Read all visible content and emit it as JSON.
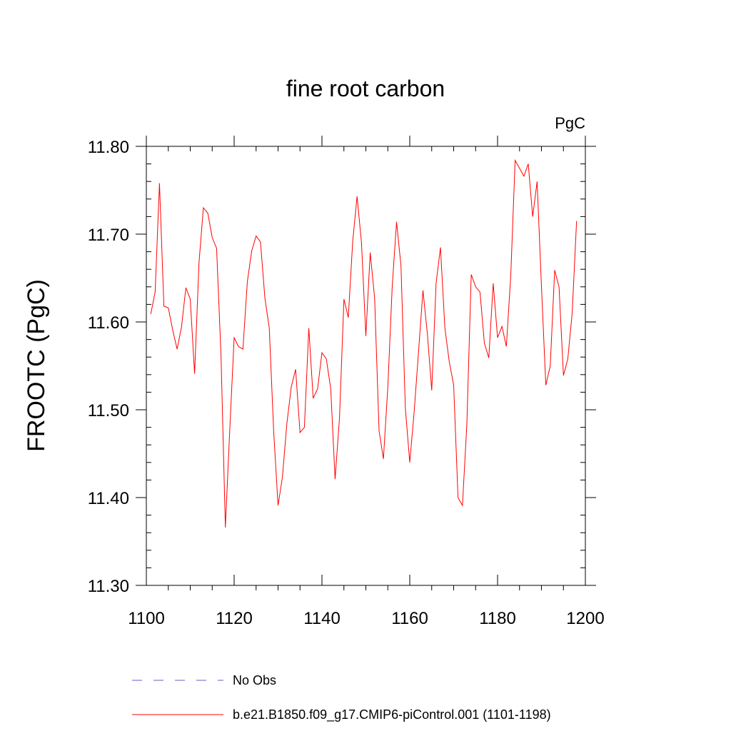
{
  "chart_data": {
    "type": "line",
    "title": "fine root carbon",
    "units_label": "PgC",
    "ylabel": "FROOTC  (PgC)",
    "xlabel": "",
    "xlim": [
      1100,
      1200
    ],
    "ylim": [
      11.3,
      11.8
    ],
    "x_ticks": [
      1100,
      1120,
      1140,
      1160,
      1180,
      1200
    ],
    "x_tick_labels": [
      "1100",
      "1120",
      "1140",
      "1160",
      "1180",
      "1200"
    ],
    "y_ticks": [
      11.3,
      11.4,
      11.5,
      11.6,
      11.7,
      11.8
    ],
    "y_tick_labels": [
      "11.30",
      "11.40",
      "11.50",
      "11.60",
      "11.70",
      "11.80"
    ],
    "grid": false,
    "legend_position": "bottom",
    "series": [
      {
        "name": "No Obs",
        "color": "#6a5acd",
        "style": "dashed",
        "x": [],
        "y": []
      },
      {
        "name": "b.e21.B1850.f09_g17.CMIP6-piControl.001 (1101-1198)",
        "color": "#ff0000",
        "style": "solid",
        "x": [
          1101,
          1102,
          1103,
          1104,
          1105,
          1106,
          1107,
          1108,
          1109,
          1110,
          1111,
          1112,
          1113,
          1114,
          1115,
          1116,
          1117,
          1118,
          1119,
          1120,
          1121,
          1122,
          1123,
          1124,
          1125,
          1126,
          1127,
          1128,
          1129,
          1130,
          1131,
          1132,
          1133,
          1134,
          1135,
          1136,
          1137,
          1138,
          1139,
          1140,
          1141,
          1142,
          1143,
          1144,
          1145,
          1146,
          1147,
          1148,
          1149,
          1150,
          1151,
          1152,
          1153,
          1154,
          1155,
          1156,
          1157,
          1158,
          1159,
          1160,
          1161,
          1162,
          1163,
          1164,
          1165,
          1166,
          1167,
          1168,
          1169,
          1170,
          1171,
          1172,
          1173,
          1174,
          1175,
          1176,
          1177,
          1178,
          1179,
          1180,
          1181,
          1182,
          1183,
          1184,
          1185,
          1186,
          1187,
          1188,
          1189,
          1190,
          1191,
          1192,
          1193,
          1194,
          1195,
          1196,
          1197,
          1198
        ],
        "y": [
          11.609,
          11.634,
          11.758,
          11.618,
          11.616,
          11.591,
          11.569,
          11.594,
          11.639,
          11.626,
          11.541,
          11.668,
          11.73,
          11.724,
          11.696,
          11.684,
          11.562,
          11.366,
          11.478,
          11.582,
          11.572,
          11.569,
          11.646,
          11.681,
          11.698,
          11.691,
          11.627,
          11.593,
          11.475,
          11.391,
          11.423,
          11.484,
          11.526,
          11.546,
          11.474,
          11.48,
          11.593,
          11.513,
          11.524,
          11.565,
          11.558,
          11.524,
          11.421,
          11.491,
          11.626,
          11.605,
          11.692,
          11.743,
          11.69,
          11.584,
          11.679,
          11.627,
          11.476,
          11.444,
          11.526,
          11.64,
          11.714,
          11.664,
          11.502,
          11.44,
          11.497,
          11.566,
          11.636,
          11.587,
          11.522,
          11.644,
          11.685,
          11.593,
          11.555,
          11.528,
          11.4,
          11.391,
          11.484,
          11.654,
          11.64,
          11.634,
          11.576,
          11.559,
          11.644,
          11.582,
          11.595,
          11.572,
          11.653,
          11.784,
          11.775,
          11.766,
          11.78,
          11.72,
          11.76,
          11.64,
          11.528,
          11.55,
          11.659,
          11.64,
          11.539,
          11.558,
          11.61,
          11.715
        ]
      }
    ]
  }
}
